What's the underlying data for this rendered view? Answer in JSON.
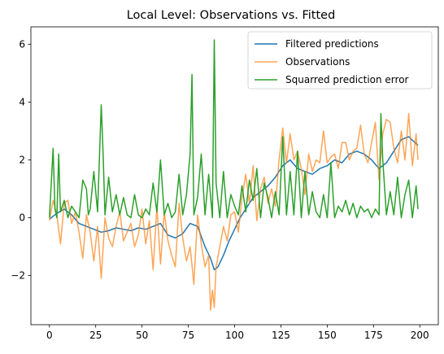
{
  "chart_data": {
    "type": "line",
    "title": "Local Level: Observations vs. Fitted",
    "xlabel": "",
    "ylabel": "",
    "xlim": [
      -10,
      210
    ],
    "ylim": [
      -3.7,
      6.6
    ],
    "xticks": [
      0,
      25,
      50,
      75,
      100,
      125,
      150,
      175,
      200
    ],
    "yticks": [
      -2,
      0,
      2,
      4,
      6
    ],
    "ytick_labels": [
      "−2",
      "0",
      "2",
      "4",
      "6"
    ],
    "grid": false,
    "legend_position": "top-right",
    "series": [
      {
        "name": "Filtered predictions",
        "color": "#1f77b4",
        "x": [
          0,
          4,
          8,
          12,
          16,
          20,
          24,
          28,
          32,
          36,
          40,
          44,
          48,
          52,
          56,
          60,
          64,
          68,
          72,
          76,
          80,
          84,
          87,
          89,
          91,
          94,
          97,
          100,
          103,
          106,
          110,
          114,
          118,
          122,
          126,
          130,
          134,
          138,
          142,
          146,
          150,
          154,
          158,
          162,
          166,
          170,
          174,
          178,
          182,
          186,
          190,
          194,
          199
        ],
        "y": [
          -0.05,
          0.15,
          0.3,
          0.1,
          -0.2,
          -0.3,
          -0.4,
          -0.5,
          -0.45,
          -0.35,
          -0.4,
          -0.45,
          -0.35,
          -0.4,
          -0.3,
          -0.2,
          -0.6,
          -0.7,
          -0.55,
          -0.2,
          -0.3,
          -1.0,
          -1.4,
          -1.8,
          -1.7,
          -1.3,
          -0.8,
          -0.4,
          0.0,
          0.3,
          0.7,
          0.9,
          1.1,
          1.4,
          1.8,
          2.0,
          1.7,
          1.6,
          1.5,
          1.7,
          1.8,
          2.0,
          1.9,
          2.2,
          2.3,
          2.2,
          2.0,
          1.7,
          1.9,
          2.3,
          2.7,
          2.8,
          2.5
        ]
      },
      {
        "name": "Observations",
        "color": "#ff7f0e",
        "x": [
          0,
          2,
          4,
          6,
          8,
          10,
          12,
          14,
          16,
          18,
          20,
          22,
          24,
          26,
          28,
          30,
          32,
          34,
          36,
          38,
          40,
          42,
          44,
          46,
          48,
          50,
          52,
          54,
          56,
          58,
          60,
          62,
          64,
          66,
          68,
          70,
          72,
          74,
          76,
          78,
          80,
          82,
          84,
          86,
          87,
          88,
          89,
          90,
          92,
          94,
          96,
          98,
          100,
          102,
          104,
          106,
          108,
          110,
          112,
          114,
          116,
          118,
          120,
          122,
          124,
          126,
          128,
          130,
          132,
          134,
          136,
          138,
          140,
          142,
          144,
          146,
          148,
          150,
          152,
          154,
          156,
          158,
          160,
          162,
          164,
          166,
          168,
          170,
          172,
          174,
          176,
          178,
          180,
          182,
          184,
          186,
          188,
          190,
          192,
          194,
          196,
          198,
          199
        ],
        "y": [
          -0.1,
          0.6,
          0.1,
          -0.9,
          0.5,
          0.6,
          -0.2,
          0.2,
          -0.5,
          -1.4,
          0.1,
          -0.5,
          -1.5,
          -0.3,
          -2.1,
          0.0,
          -0.7,
          -1.0,
          -0.3,
          0.2,
          -0.8,
          -0.5,
          -0.2,
          -1.0,
          -0.6,
          0.3,
          -0.9,
          -0.1,
          -1.8,
          0.4,
          -1.6,
          0.2,
          -0.8,
          -1.3,
          -1.7,
          0.5,
          -0.7,
          -1.5,
          -1.0,
          -2.3,
          0.1,
          -0.9,
          -1.7,
          -1.3,
          -3.2,
          -2.5,
          -3.1,
          -1.7,
          -1.0,
          -0.3,
          -0.8,
          0.1,
          0.2,
          -0.5,
          0.7,
          1.5,
          0.5,
          1.8,
          -0.1,
          1.0,
          1.4,
          0.5,
          1.0,
          0.4,
          2.0,
          3.1,
          1.9,
          2.9,
          2.0,
          2.3,
          1.7,
          0.8,
          2.2,
          1.6,
          2.0,
          1.9,
          3.0,
          1.9,
          2.1,
          2.2,
          1.7,
          2.6,
          2.6,
          2.0,
          2.3,
          2.4,
          3.2,
          2.2,
          1.9,
          2.6,
          3.3,
          1.3,
          2.9,
          3.4,
          3.3,
          2.4,
          1.9,
          3.0,
          2.0,
          3.6,
          1.8,
          2.9,
          2.0
        ]
      },
      {
        "name": "Squarred prediction error",
        "color": "#2ca02c",
        "x": [
          0,
          2,
          3,
          4,
          5,
          6,
          7,
          8,
          9,
          10,
          12,
          14,
          16,
          18,
          20,
          21,
          22,
          24,
          26,
          28,
          29,
          30,
          32,
          34,
          36,
          38,
          40,
          42,
          44,
          46,
          48,
          50,
          52,
          54,
          56,
          58,
          60,
          62,
          64,
          66,
          68,
          70,
          72,
          74,
          76,
          77,
          78,
          80,
          82,
          84,
          86,
          88,
          89,
          90,
          92,
          94,
          96,
          98,
          100,
          102,
          104,
          106,
          108,
          110,
          112,
          114,
          116,
          118,
          120,
          122,
          124,
          126,
          128,
          130,
          132,
          134,
          136,
          138,
          140,
          142,
          144,
          146,
          148,
          150,
          152,
          154,
          156,
          158,
          160,
          162,
          164,
          166,
          168,
          170,
          172,
          174,
          176,
          178,
          179,
          180,
          182,
          184,
          186,
          188,
          190,
          192,
          194,
          196,
          198,
          199
        ],
        "y": [
          0.0,
          2.4,
          0.3,
          0.0,
          2.2,
          0.2,
          0.4,
          0.6,
          0.3,
          0.0,
          0.4,
          0.2,
          0.0,
          1.3,
          1.0,
          0.1,
          0.3,
          1.6,
          0.2,
          3.9,
          2.2,
          0.1,
          1.4,
          0.2,
          0.8,
          0.1,
          0.7,
          0.1,
          0.0,
          0.8,
          0.1,
          0.0,
          0.3,
          0.1,
          1.2,
          0.2,
          2.0,
          0.1,
          0.5,
          0.0,
          0.2,
          1.5,
          0.1,
          0.8,
          2.2,
          4.95,
          0.1,
          0.7,
          2.2,
          0.1,
          1.5,
          0.0,
          6.15,
          1.2,
          0.0,
          1.6,
          0.0,
          0.8,
          0.4,
          0.1,
          1.1,
          0.2,
          1.3,
          0.6,
          1.7,
          0.0,
          1.2,
          0.7,
          0.0,
          0.9,
          0.1,
          2.8,
          0.1,
          1.6,
          0.1,
          2.3,
          0.0,
          1.6,
          0.1,
          0.9,
          0.2,
          0.0,
          0.8,
          0.0,
          1.9,
          0.0,
          0.4,
          0.2,
          0.6,
          0.1,
          0.5,
          0.0,
          0.4,
          0.2,
          0.3,
          0.0,
          0.3,
          0.1,
          3.6,
          2.0,
          0.1,
          0.9,
          0.1,
          1.4,
          0.0,
          0.8,
          1.3,
          0.0,
          1.1,
          0.3
        ]
      }
    ]
  }
}
